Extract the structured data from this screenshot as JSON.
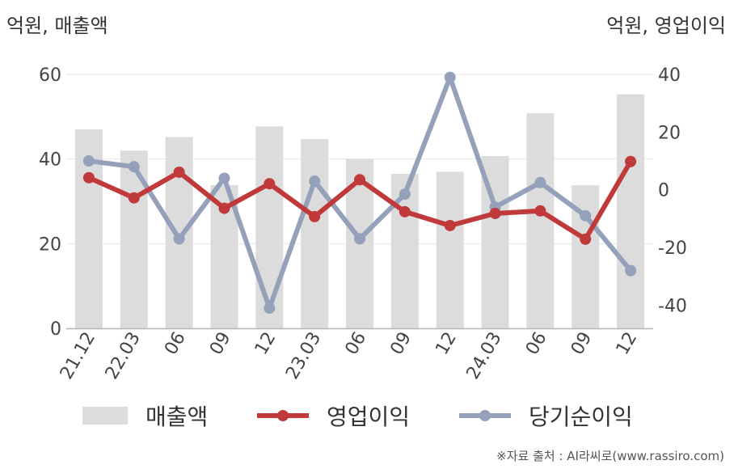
{
  "units": {
    "left": "억원, 매출액",
    "right": "억원, 영업이익"
  },
  "source": "※자료 출처 : AI라씨로(www.rassiro.com)",
  "colors": {
    "revenue": "#dcdcdc",
    "operating_income": "#c0393b",
    "net_income": "#95a1ba",
    "axis": "#b5b5b5",
    "grid": "#e6e6e6"
  },
  "chart_data": {
    "type": "bar",
    "categories": [
      "21.12",
      "22.03",
      "06",
      "09",
      "12",
      "23.03",
      "06",
      "09",
      "12",
      "24.03",
      "06",
      "09",
      "12"
    ],
    "series": [
      {
        "name": "매출액",
        "type": "bar",
        "axis": "left",
        "values": [
          47.0,
          42.0,
          45.2,
          33.8,
          47.7,
          44.7,
          40.0,
          36.5,
          37.0,
          40.7,
          50.8,
          33.8,
          55.3
        ]
      },
      {
        "name": "영업이익",
        "type": "line",
        "axis": "right",
        "values": [
          4.2,
          -2.8,
          6.1,
          -6.4,
          2.1,
          -9.3,
          3.5,
          -7.6,
          -12.4,
          -8.2,
          -7.3,
          -17.1,
          9.8
        ]
      },
      {
        "name": "당기순이익",
        "type": "line",
        "axis": "right",
        "values": [
          10.0,
          8.0,
          -17.0,
          4.0,
          -41.0,
          3.0,
          -17.0,
          -1.5,
          39.0,
          -6.0,
          2.5,
          -9.0,
          -28.0
        ]
      }
    ],
    "y_left": {
      "ylim": [
        0,
        60
      ],
      "ticks": [
        "0",
        "20",
        "40",
        "60"
      ]
    },
    "y_right": {
      "ylim": [
        -48,
        40
      ],
      "ticks": [
        "-40",
        "-20",
        "0",
        "20",
        "40"
      ]
    },
    "grid": true,
    "legend_position": "bottom",
    "legend": [
      "매출액",
      "영업이익",
      "당기순이익"
    ]
  }
}
